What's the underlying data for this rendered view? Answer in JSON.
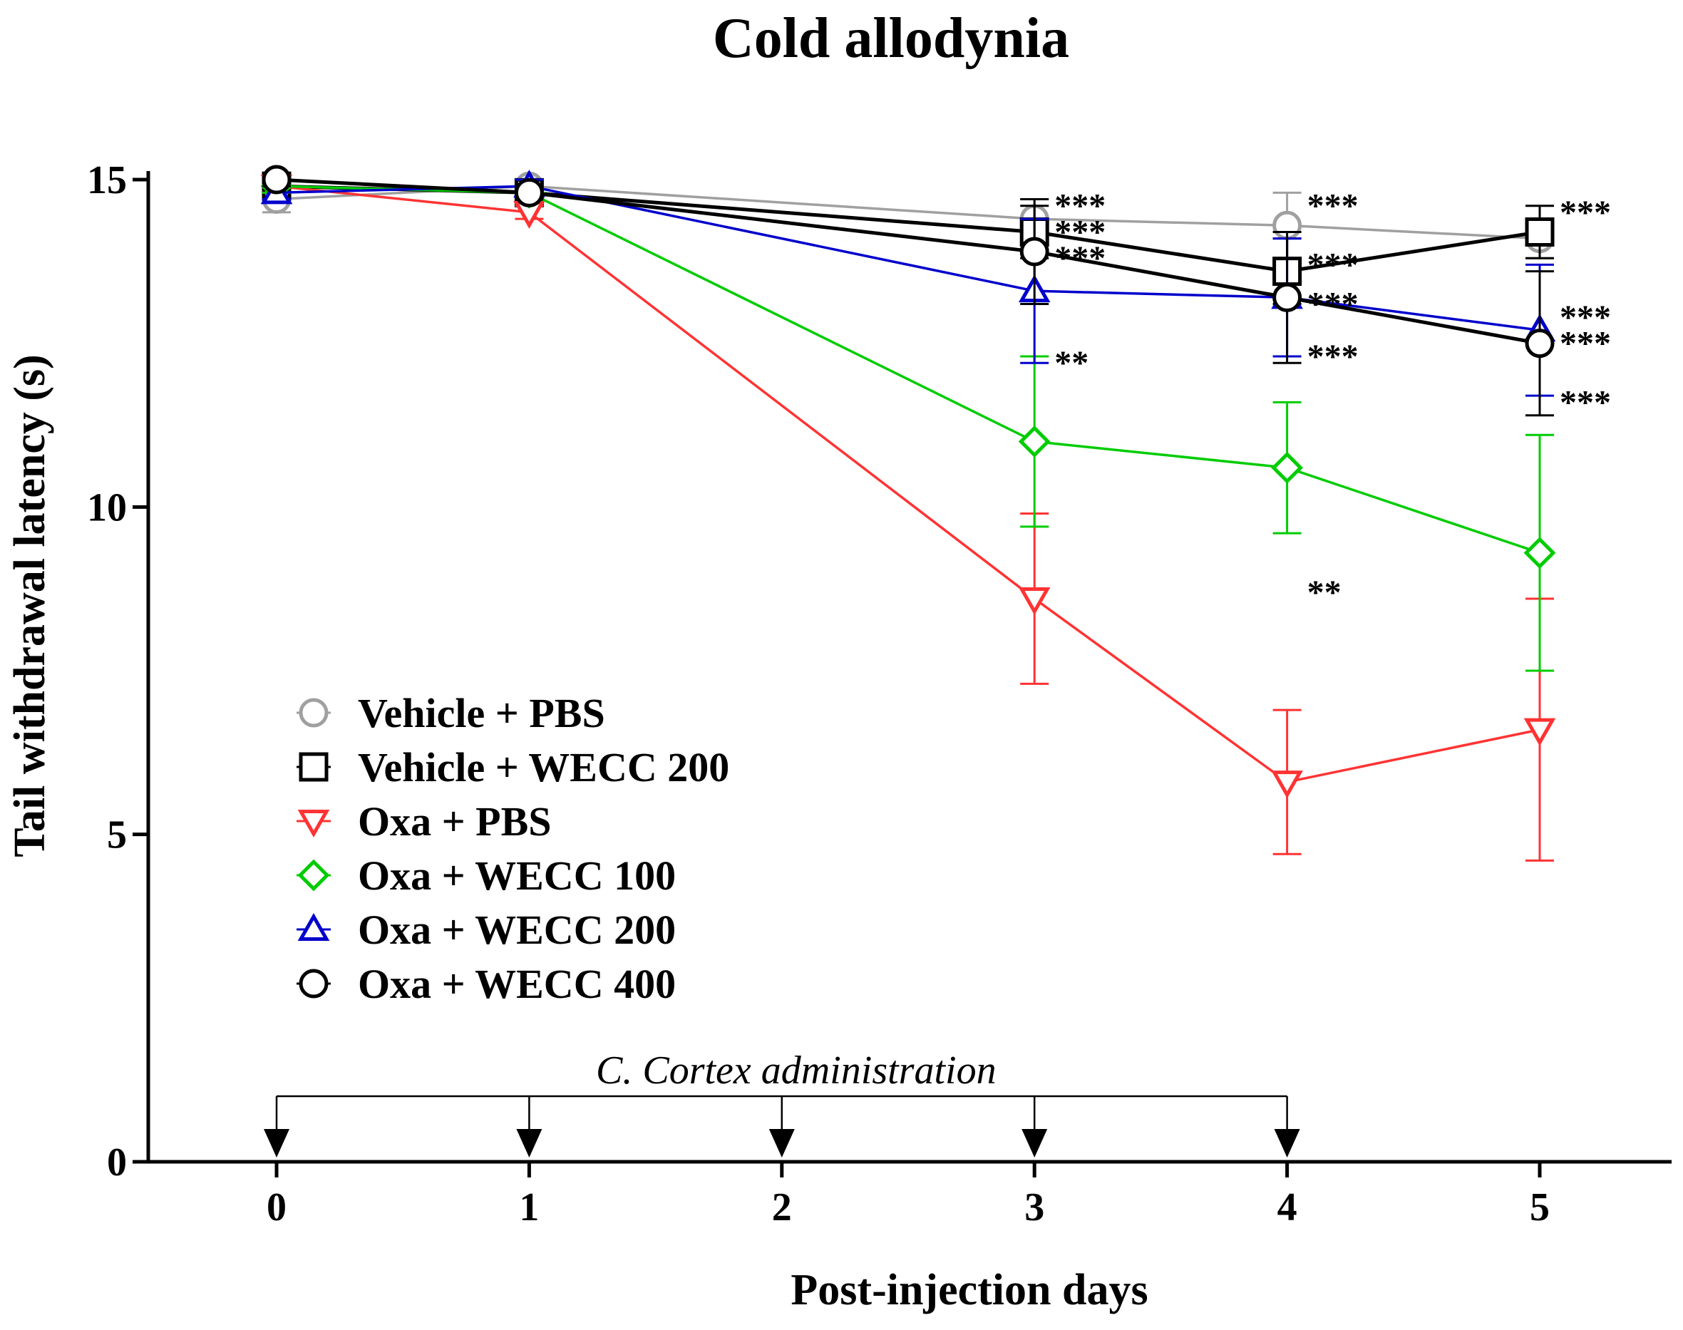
{
  "chart_data": {
    "type": "line",
    "title": "Cold allodynia",
    "xlabel": "Post-injection days",
    "ylabel": "Tail withdrawal latency (s)",
    "x": [
      0,
      1,
      2,
      3,
      4,
      5
    ],
    "xticks": [
      "0",
      "1",
      "2",
      "3",
      "4",
      "5"
    ],
    "yticks": [
      0,
      5,
      10,
      15
    ],
    "ylim": [
      0,
      15
    ],
    "series": [
      {
        "name": "Vehicle + PBS",
        "marker": "circle",
        "color": "#a0a0a0",
        "x": [
          0,
          1,
          3,
          4,
          5
        ],
        "values": [
          14.7,
          14.9,
          14.4,
          14.3,
          14.1
        ],
        "err": [
          0.2,
          0.1,
          0.3,
          0.5,
          0.3
        ]
      },
      {
        "name": "Vehicle + WECC 200",
        "marker": "square",
        "color": "#000000",
        "x": [
          0,
          1,
          3,
          4,
          5
        ],
        "values": [
          14.9,
          14.8,
          14.2,
          13.6,
          14.2
        ],
        "err": [
          0.1,
          0.1,
          0.4,
          0.5,
          0.4
        ]
      },
      {
        "name": "Oxa + PBS",
        "marker": "triangle-down",
        "color": "#ff3333",
        "x": [
          0,
          1,
          3,
          4,
          5
        ],
        "values": [
          14.9,
          14.5,
          8.6,
          5.8,
          6.6
        ],
        "err": [
          0.1,
          0.1,
          1.3,
          1.1,
          2.0
        ]
      },
      {
        "name": "Oxa + WECC 100",
        "marker": "diamond",
        "color": "#00cc00",
        "x": [
          0,
          1,
          3,
          4,
          5
        ],
        "values": [
          14.9,
          14.8,
          11.0,
          10.6,
          9.3
        ],
        "err": [
          0.1,
          0.1,
          1.3,
          1.0,
          1.8
        ]
      },
      {
        "name": "Oxa + WECC 200",
        "marker": "triangle-up",
        "color": "#0000cc",
        "x": [
          0,
          1,
          3,
          4,
          5
        ],
        "values": [
          14.8,
          14.9,
          13.3,
          13.2,
          12.7
        ],
        "err": [
          0.1,
          0.1,
          1.1,
          0.9,
          1.0
        ]
      },
      {
        "name": "Oxa + WECC 400",
        "marker": "circle",
        "color": "#000000",
        "x": [
          0,
          1,
          3,
          4,
          5
        ],
        "values": [
          15.0,
          14.8,
          13.9,
          13.2,
          12.5
        ],
        "err": [
          0.1,
          0.1,
          0.8,
          1.0,
          1.1
        ]
      }
    ],
    "significance": [
      {
        "x": 3,
        "y": 14.6,
        "text": "***"
      },
      {
        "x": 3,
        "y": 14.2,
        "text": "***"
      },
      {
        "x": 3,
        "y": 13.8,
        "text": "***"
      },
      {
        "x": 3,
        "y": 12.2,
        "text": "**"
      },
      {
        "x": 4,
        "y": 14.6,
        "text": "***"
      },
      {
        "x": 4,
        "y": 13.7,
        "text": "***"
      },
      {
        "x": 4,
        "y": 13.1,
        "text": "***"
      },
      {
        "x": 4,
        "y": 12.3,
        "text": "***"
      },
      {
        "x": 4,
        "y": 8.7,
        "text": "**"
      },
      {
        "x": 5,
        "y": 14.5,
        "text": "***"
      },
      {
        "x": 5,
        "y": 12.9,
        "text": "***"
      },
      {
        "x": 5,
        "y": 12.5,
        "text": "***"
      },
      {
        "x": 5,
        "y": 11.6,
        "text": "***"
      }
    ],
    "administration": {
      "label": "C. Cortex administration",
      "days": [
        0,
        1,
        2,
        3,
        4
      ]
    }
  }
}
